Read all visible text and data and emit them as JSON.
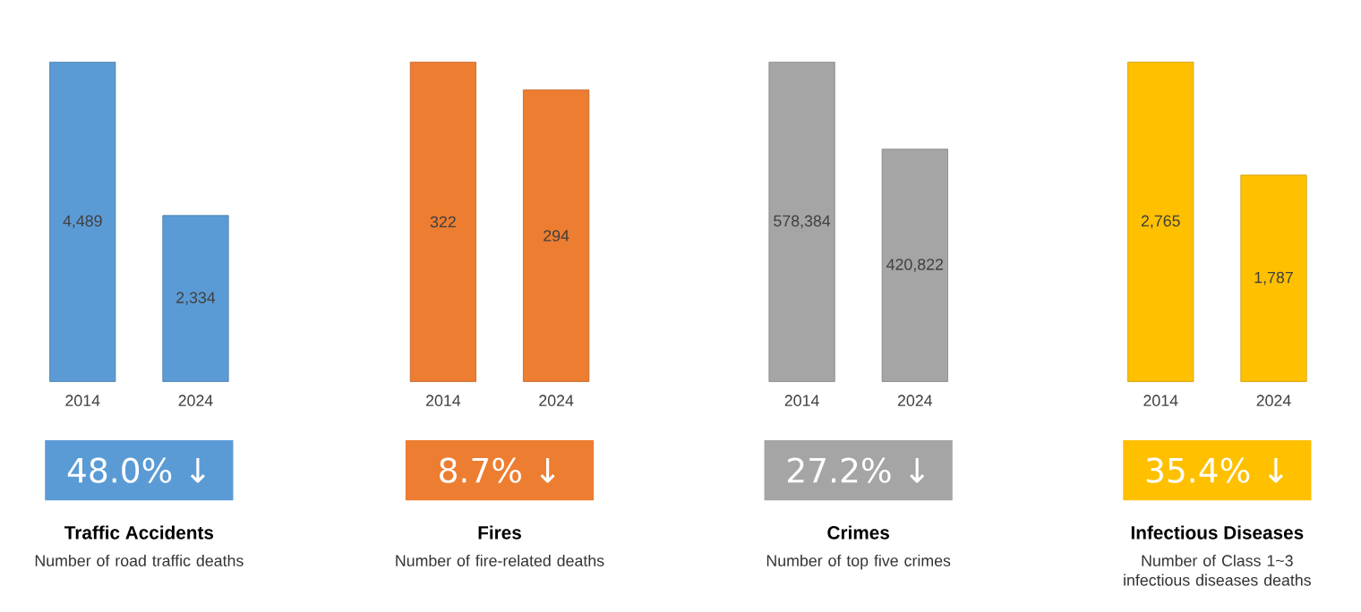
{
  "chart_data": [
    {
      "type": "bar",
      "title": "Traffic Accidents",
      "subtitle": "Number of road traffic deaths",
      "categories": [
        "2014",
        "2024"
      ],
      "values": [
        4489,
        2334
      ],
      "value_labels": [
        "4,489",
        "2,334"
      ],
      "color": "#5b9bd5",
      "annotations": [
        "48.0% ↓"
      ]
    },
    {
      "type": "bar",
      "title": "Fires",
      "subtitle": "Number of fire-related deaths",
      "categories": [
        "2014",
        "2024"
      ],
      "values": [
        322,
        294
      ],
      "value_labels": [
        "322",
        "294"
      ],
      "color": "#ed7d31",
      "annotations": [
        "8.7% ↓"
      ]
    },
    {
      "type": "bar",
      "title": "Crimes",
      "subtitle": "Number of top five crimes",
      "categories": [
        "2014",
        "2024"
      ],
      "values": [
        578384,
        420822
      ],
      "value_labels": [
        "578,384",
        "420,822"
      ],
      "color": "#a5a5a5",
      "annotations": [
        "27.2% ↓"
      ]
    },
    {
      "type": "bar",
      "title": "Infectious Diseases",
      "subtitle": "Number of Class 1~3 infectious diseases deaths",
      "categories": [
        "2014",
        "2024"
      ],
      "values": [
        2765,
        1787
      ],
      "value_labels": [
        "2,765",
        "1,787"
      ],
      "color": "#ffc000",
      "annotations": [
        "35.4% ↓"
      ]
    }
  ]
}
